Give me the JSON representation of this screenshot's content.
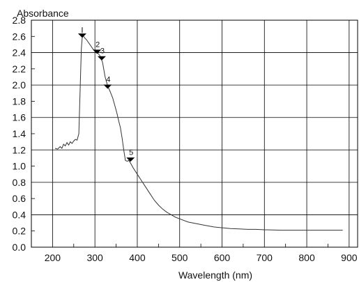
{
  "chart_data": {
    "type": "line",
    "title": "",
    "ylabel": "Absorbance",
    "xlabel": "Wavelength (nm)",
    "xlim": [
      150,
      920
    ],
    "ylim": [
      0.0,
      2.8
    ],
    "x_ticks": [
      200,
      300,
      400,
      500,
      600,
      700,
      800,
      900
    ],
    "x_tick_labels": [
      "200",
      "300",
      "400",
      "500",
      "600",
      "700",
      "800",
      "900"
    ],
    "y_ticks": [
      0.0,
      0.2,
      0.4,
      0.6,
      0.8,
      1.0,
      1.2,
      1.4,
      1.6,
      1.8,
      2.0,
      2.2,
      2.4,
      2.6,
      2.8
    ],
    "y_tick_labels": [
      "0.0",
      "0.2",
      "0.4",
      "0.6",
      "0.8",
      "1.0",
      "1.2",
      "1.4",
      "1.6",
      "1.8",
      "2.0",
      "2.2",
      "2.4",
      "2.6",
      "2.8"
    ],
    "grid": true,
    "series": [
      {
        "x": [
          206,
          212,
          218,
          222,
          226,
          230,
          234,
          238,
          242,
          246,
          250,
          254,
          258,
          262,
          266,
          268,
          270,
          272,
          276,
          280,
          284,
          288,
          292,
          296,
          300,
          306,
          312,
          318,
          324,
          330,
          336,
          342,
          348,
          352,
          356,
          360,
          364,
          368,
          372,
          376,
          380,
          385,
          390,
          400,
          410,
          420,
          430,
          440,
          450,
          460,
          470,
          480,
          490,
          500,
          520,
          540,
          560,
          580,
          600,
          620,
          640,
          660,
          680,
          700,
          740,
          780,
          820,
          860,
          885
        ],
        "y": [
          1.22,
          1.21,
          1.24,
          1.22,
          1.27,
          1.25,
          1.29,
          1.26,
          1.3,
          1.28,
          1.31,
          1.33,
          1.32,
          1.4,
          2.1,
          2.45,
          2.58,
          2.61,
          2.58,
          2.56,
          2.53,
          2.5,
          2.47,
          2.44,
          2.42,
          2.4,
          2.36,
          2.28,
          2.1,
          1.99,
          1.92,
          1.84,
          1.73,
          1.65,
          1.56,
          1.48,
          1.35,
          1.2,
          1.07,
          1.06,
          1.07,
          1.03,
          0.98,
          0.9,
          0.82,
          0.74,
          0.66,
          0.58,
          0.52,
          0.47,
          0.43,
          0.4,
          0.37,
          0.35,
          0.31,
          0.29,
          0.27,
          0.25,
          0.24,
          0.23,
          0.225,
          0.22,
          0.22,
          0.215,
          0.21,
          0.21,
          0.21,
          0.21,
          0.21
        ]
      }
    ],
    "peaks": [
      {
        "label": "",
        "x": 270,
        "y": 2.61
      },
      {
        "label": "2",
        "x": 305,
        "y": 2.41
      },
      {
        "label": "3",
        "x": 316,
        "y": 2.33
      },
      {
        "label": "4",
        "x": 330,
        "y": 1.98
      },
      {
        "label": "5",
        "x": 384,
        "y": 1.08
      }
    ]
  }
}
